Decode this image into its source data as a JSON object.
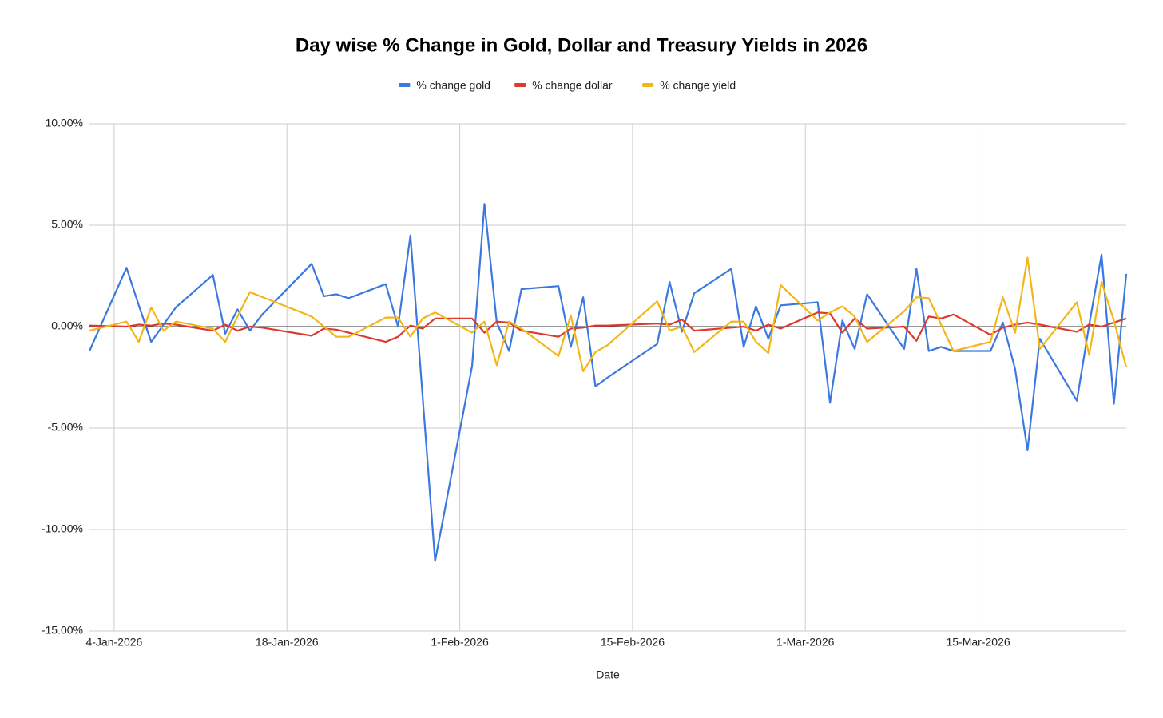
{
  "chart_data": {
    "type": "line",
    "title": "Day wise % Change in Gold, Dollar and Treasury Yields in 2026",
    "x_label": "Date",
    "legend": "top",
    "x": [
      "2026-01-02",
      "2026-01-05",
      "2026-01-06",
      "2026-01-07",
      "2026-01-08",
      "2026-01-09",
      "2026-01-12",
      "2026-01-13",
      "2026-01-14",
      "2026-01-15",
      "2026-01-16",
      "2026-01-20",
      "2026-01-21",
      "2026-01-22",
      "2026-01-23",
      "2026-01-26",
      "2026-01-27",
      "2026-01-28",
      "2026-01-29",
      "2026-01-30",
      "2026-02-02",
      "2026-02-03",
      "2026-02-04",
      "2026-02-05",
      "2026-02-06",
      "2026-02-09",
      "2026-02-10",
      "2026-02-11",
      "2026-02-12",
      "2026-02-13",
      "2026-02-17",
      "2026-02-18",
      "2026-02-19",
      "2026-02-20",
      "2026-02-23",
      "2026-02-24",
      "2026-02-25",
      "2026-02-26",
      "2026-02-27",
      "2026-03-02",
      "2026-03-03",
      "2026-03-04",
      "2026-03-05",
      "2026-03-06",
      "2026-03-09",
      "2026-03-10",
      "2026-03-11",
      "2026-03-12",
      "2026-03-13",
      "2026-03-16",
      "2026-03-17",
      "2026-03-18",
      "2026-03-19",
      "2026-03-20",
      "2026-03-23",
      "2026-03-24",
      "2026-03-25",
      "2026-03-26",
      "2026-03-27"
    ],
    "series": [
      {
        "name": "% change gold",
        "color": "#3b78e0",
        "values": [
          -1.2,
          2.9,
          1.05,
          -0.75,
          0.1,
          0.95,
          2.55,
          -0.35,
          0.85,
          -0.2,
          0.6,
          3.1,
          1.5,
          1.6,
          1.4,
          2.1,
          0.0,
          4.5,
          -3.5,
          -11.55,
          -1.95,
          6.05,
          0.2,
          -1.2,
          1.85,
          2.0,
          -1.0,
          1.45,
          -2.95,
          -2.5,
          -0.85,
          2.2,
          -0.25,
          1.65,
          2.85,
          -1.0,
          1.0,
          -0.6,
          1.05,
          1.2,
          -3.75,
          0.3,
          -1.1,
          1.6,
          -1.1,
          2.85,
          -1.2,
          -1.0,
          -1.2,
          -1.2,
          0.2,
          -2.1,
          -6.1,
          -0.6,
          -3.65,
          0.1,
          3.55,
          -3.8,
          2.6
        ]
      },
      {
        "name": "% change dollar",
        "color": "#db3a2e",
        "values": [
          0.05,
          0.0,
          0.1,
          0.05,
          0.15,
          0.1,
          -0.2,
          0.1,
          -0.2,
          0.0,
          -0.05,
          -0.45,
          -0.1,
          -0.15,
          -0.3,
          -0.75,
          -0.5,
          0.05,
          -0.1,
          0.4,
          0.4,
          -0.3,
          0.25,
          0.2,
          -0.2,
          -0.5,
          -0.1,
          -0.05,
          0.05,
          0.05,
          0.15,
          0.1,
          0.35,
          -0.2,
          -0.05,
          0.0,
          -0.2,
          0.1,
          -0.1,
          0.7,
          0.65,
          -0.3,
          0.4,
          -0.1,
          0.0,
          -0.7,
          0.5,
          0.4,
          0.6,
          -0.4,
          -0.05,
          0.1,
          0.2,
          0.1,
          -0.25,
          0.1,
          0.0,
          0.2,
          0.4
        ]
      },
      {
        "name": "% change yield",
        "color": "#f2b619",
        "values": [
          -0.2,
          0.25,
          -0.75,
          0.95,
          -0.2,
          0.25,
          -0.1,
          -0.75,
          0.5,
          1.7,
          1.46,
          0.5,
          0.0,
          -0.5,
          -0.5,
          0.45,
          0.45,
          -0.5,
          0.4,
          0.7,
          -0.3,
          0.25,
          -1.9,
          0.25,
          -0.1,
          -1.45,
          0.55,
          -2.2,
          -1.25,
          -0.9,
          1.25,
          -0.2,
          0.0,
          -1.25,
          0.25,
          0.25,
          -0.75,
          -1.3,
          2.05,
          0.3,
          0.7,
          1.0,
          0.5,
          -0.75,
          0.75,
          1.45,
          1.4,
          0.1,
          -1.2,
          -0.75,
          1.45,
          -0.3,
          3.4,
          -1.1,
          1.2,
          -1.4,
          2.2,
          0.3,
          -2.0
        ]
      }
    ],
    "xlim": [
      "2026-01-02",
      "2026-03-27"
    ],
    "xticks": [
      {
        "value": "2026-01-04",
        "label": "4-Jan-2026"
      },
      {
        "value": "2026-01-18",
        "label": "18-Jan-2026"
      },
      {
        "value": "2026-02-01",
        "label": "1-Feb-2026"
      },
      {
        "value": "2026-02-15",
        "label": "15-Feb-2026"
      },
      {
        "value": "2026-03-01",
        "label": "1-Mar-2026"
      },
      {
        "value": "2026-03-15",
        "label": "15-Mar-2026"
      }
    ],
    "ylim": [
      -15,
      10
    ],
    "yticks": [
      {
        "value": -15,
        "label": "-15.00%"
      },
      {
        "value": -10,
        "label": "-10.00%"
      },
      {
        "value": -5,
        "label": "-5.00%"
      },
      {
        "value": 0,
        "label": "0.00%"
      },
      {
        "value": 5,
        "label": "5.00%"
      },
      {
        "value": 10,
        "label": "10.00%"
      }
    ],
    "grid": true
  }
}
